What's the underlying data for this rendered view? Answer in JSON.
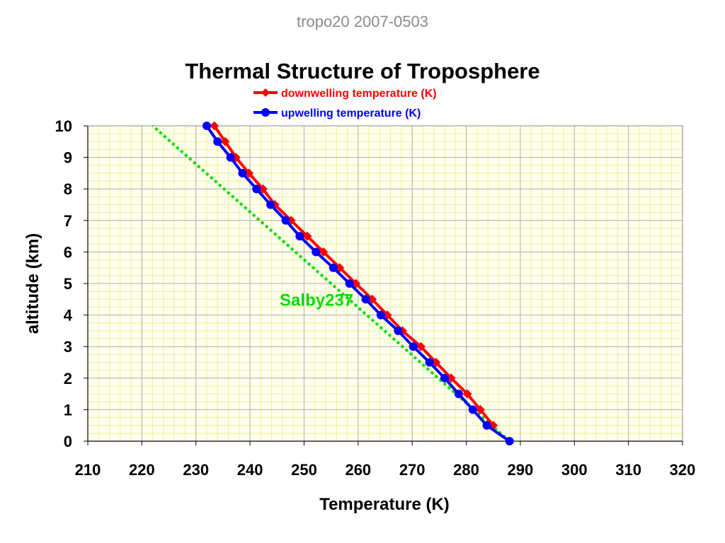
{
  "header": {
    "slide_title": "tropo20 2007-0503"
  },
  "colors": {
    "downwelling": "#ff0000",
    "upwelling": "#0000ff",
    "salby": "#00dd00",
    "plot_bg": "#ffffee",
    "minor_grid": "#eeee99",
    "major_grid": "#b0b0b0"
  },
  "chart_data": {
    "type": "line",
    "title": "Thermal Structure of Troposphere",
    "xlabel": "Temperature (K)",
    "ylabel": "altitude (km)",
    "xlim": [
      210,
      320
    ],
    "ylim": [
      0,
      10
    ],
    "xticks": [
      "210",
      "220",
      "230",
      "240",
      "250",
      "260",
      "270",
      "280",
      "290",
      "300",
      "310",
      "320"
    ],
    "yticks": [
      "0",
      "1",
      "2",
      "3",
      "4",
      "5",
      "6",
      "7",
      "8",
      "9",
      "10"
    ],
    "grid": true,
    "legend_position": "top-center",
    "series": [
      {
        "name": "downwelling temperature (K)",
        "marker": "diamond",
        "x": [
          285.0,
          282.6,
          280.2,
          277.2,
          274.4,
          271.6,
          268.2,
          265.4,
          262.6,
          259.6,
          256.6,
          253.6,
          250.6,
          247.6,
          244.6,
          242.4,
          239.8,
          237.4,
          235.4,
          233.4
        ],
        "y": [
          0.5,
          1.0,
          1.5,
          2.0,
          2.5,
          3.0,
          3.5,
          4.0,
          4.5,
          5.0,
          5.5,
          6.0,
          6.5,
          7.0,
          7.5,
          8.0,
          8.5,
          9.0,
          9.5,
          10.0
        ]
      },
      {
        "name": "upwelling temperature (K)",
        "marker": "circle",
        "x": [
          288.0,
          283.8,
          281.2,
          278.6,
          276.0,
          273.2,
          270.2,
          267.4,
          264.2,
          261.4,
          258.4,
          255.4,
          252.2,
          249.2,
          246.6,
          243.8,
          241.2,
          238.6,
          236.4,
          234.0,
          232.0
        ],
        "y": [
          0.0,
          0.5,
          1.0,
          1.5,
          2.0,
          2.5,
          3.0,
          3.5,
          4.0,
          4.5,
          5.0,
          5.5,
          6.0,
          6.5,
          7.0,
          7.5,
          8.0,
          8.5,
          9.0,
          9.5,
          10.0
        ]
      }
    ],
    "reference_line": {
      "label": "Salby237",
      "style": "dotted",
      "x": [
        288.0,
        222.0
      ],
      "y": [
        0.0,
        10.0
      ]
    },
    "annotations": [
      {
        "text": "Salby237",
        "x": 251,
        "y": 4.5
      }
    ]
  }
}
